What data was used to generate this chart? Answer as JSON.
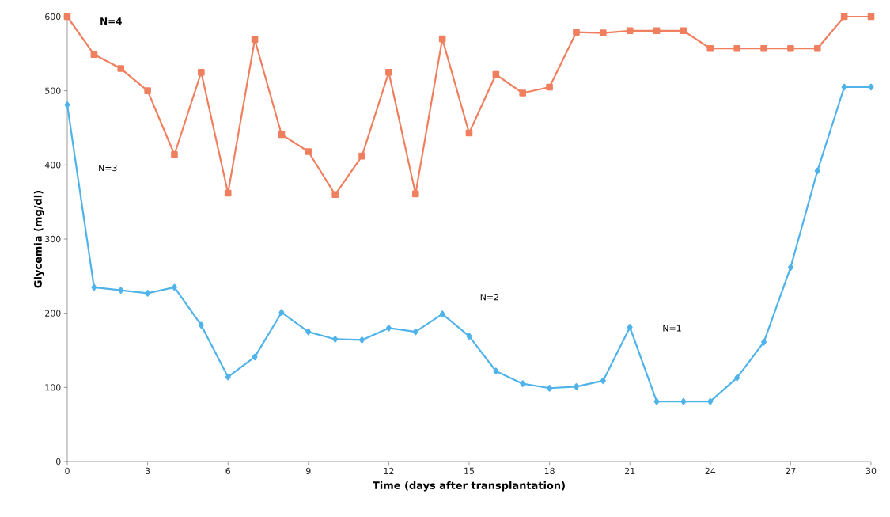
{
  "chart_data": {
    "type": "line",
    "xlabel": "Time (days after transplantation)",
    "ylabel": "Glycemia (mg/dl)",
    "x": [
      0,
      1,
      2,
      3,
      4,
      5,
      6,
      7,
      8,
      9,
      10,
      11,
      12,
      13,
      14,
      15,
      16,
      17,
      18,
      19,
      20,
      21,
      22,
      23,
      24,
      25,
      26,
      27,
      28,
      29,
      30
    ],
    "series": [
      {
        "color": "#f07f5f",
        "marker": "square",
        "values": [
          600,
          549,
          530,
          500,
          414,
          525,
          362,
          569,
          441,
          418,
          360,
          412,
          525,
          361,
          570,
          443,
          522,
          497,
          505,
          579,
          578,
          581,
          581,
          581,
          557,
          557,
          557,
          557,
          557,
          600,
          600
        ]
      },
      {
        "color": "#4fb3ea",
        "marker": "diamond",
        "values": [
          481,
          235,
          231,
          227,
          235,
          184,
          114,
          141,
          201,
          175,
          165,
          164,
          180,
          175,
          199,
          169,
          122,
          105,
          99,
          101,
          109,
          181,
          81,
          81,
          81,
          113,
          161,
          262,
          392,
          505,
          505
        ]
      }
    ],
    "xlim": [
      0,
      30
    ],
    "ylim": [
      0,
      600
    ],
    "xticks": [
      0,
      3,
      6,
      9,
      12,
      15,
      18,
      21,
      24,
      27,
      30
    ],
    "yticks": [
      0,
      100,
      200,
      300,
      400,
      500,
      600
    ],
    "grid": false,
    "line_style": "solid",
    "annotations": [
      "N=4",
      "N=3",
      "N=2",
      "N=1"
    ]
  }
}
